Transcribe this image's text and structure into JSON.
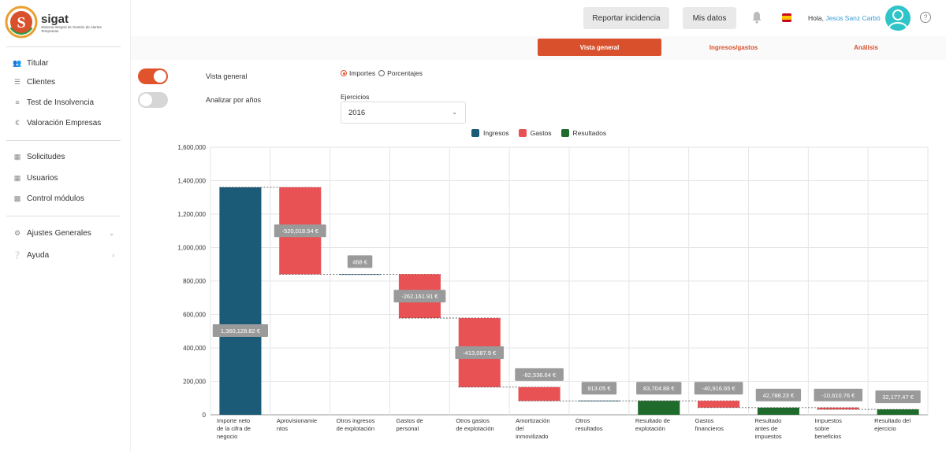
{
  "app": {
    "name": "sigat",
    "subtitle": "Sistema Integral de Gestión de Alertas Tempranas"
  },
  "colors": {
    "accent": "#d9512c",
    "ingresos": "#1c5b78",
    "gastos": "#e85255",
    "resultados": "#1e6b2c",
    "user_link": "#3a9bd5"
  },
  "sidebar": {
    "items": [
      {
        "label": "Titular",
        "icon": "users-icon"
      },
      {
        "label": "Clientes",
        "icon": "list-icon"
      },
      {
        "label": "Test de Insolvencia",
        "icon": "checklist-icon"
      },
      {
        "label": "Valoración Empresas",
        "icon": "euro-icon"
      },
      {
        "label": "Solicitudes",
        "icon": "id-card-icon"
      },
      {
        "label": "Usuarios",
        "icon": "id-card-icon"
      },
      {
        "label": "Control módulos",
        "icon": "calendar-icon"
      },
      {
        "label": "Ajustes Generales",
        "icon": "gear-icon"
      },
      {
        "label": "Ayuda",
        "icon": "help-icon"
      }
    ]
  },
  "header": {
    "report_button": "Reportar incidencia",
    "mydata_button": "Mis datos",
    "greeting": "Hola,",
    "user_name": "Jesús Sanz Carbó",
    "help": "?"
  },
  "tabs": [
    {
      "label": "Vista general",
      "active": true
    },
    {
      "label": "Ingresos/gastos",
      "active": false
    },
    {
      "label": "Análisis",
      "active": false
    }
  ],
  "controls": {
    "toggle_general": {
      "label": "Vista general",
      "on": true
    },
    "toggle_years": {
      "label": "Analizar por años",
      "on": false
    },
    "radio_importes": "Importes",
    "radio_porcentajes": "Porcentajes",
    "radio_selected": "Importes",
    "ejercicios_label": "Ejercicios",
    "ejercicios_value": "2016"
  },
  "legend": [
    "Ingresos",
    "Gastos",
    "Resultados"
  ],
  "chart_data": {
    "type": "waterfall",
    "ylim": [
      0,
      1600000
    ],
    "yticks": [
      "0",
      "200,000",
      "400,000",
      "600,000",
      "800,000",
      "1,000,000",
      "1,200,000",
      "1,400,000",
      "1,600,000"
    ],
    "categories": [
      "Importe neto de la cifra de negocio",
      "Aprovisionamientos",
      "Otros ingresos de explotación",
      "Gastos de personal",
      "Otros gastos de explotación",
      "Amortización del inmovilizado",
      "Otros resultados",
      "Resultado de explotación",
      "Gastos financieros",
      "Resultado antes de impuestos",
      "Impuestos sobre beneficios",
      "Resultado del ejercicio"
    ],
    "category_labels": [
      [
        "Importe neto",
        "de la cifra de",
        "negocio"
      ],
      [
        "Aprovisionamie",
        "ntos"
      ],
      [
        "Otros ingresos",
        "de explotación"
      ],
      [
        "Gastos de",
        "personal"
      ],
      [
        "Otros gastos",
        "de explotación"
      ],
      [
        "Amortización",
        "del",
        "inmovilizado"
      ],
      [
        "Otros",
        "resultados"
      ],
      [
        "Resultado de",
        "explotación"
      ],
      [
        "Gastos",
        "financieros"
      ],
      [
        "Resultado",
        "antes de",
        "impuestos"
      ],
      [
        "Impuestos",
        "sobre",
        "beneficios"
      ],
      [
        "Resultado del",
        "ejercicio"
      ]
    ],
    "values": [
      1360128.82,
      -520018.54,
      468,
      -262161.91,
      -413087.9,
      -82536.64,
      913.05,
      83704.88,
      -40916.65,
      42788.23,
      -10610.76,
      32177.47
    ],
    "kinds": [
      "ingreso",
      "gasto",
      "ingreso",
      "gasto",
      "gasto",
      "gasto",
      "ingreso",
      "resultado",
      "gasto",
      "resultado",
      "gasto",
      "resultado"
    ],
    "data_labels": [
      "1,360,128.82 €",
      "-520,018.54 €",
      "468 €",
      "-262,161.91 €",
      "-413,087.9 €",
      "-82,536.64 €",
      "913.05 €",
      "83,704.88 €",
      "-40,916.65 €",
      "42,788.23 €",
      "-10,610.76 €",
      "32,177.47 €"
    ],
    "grid": true
  }
}
